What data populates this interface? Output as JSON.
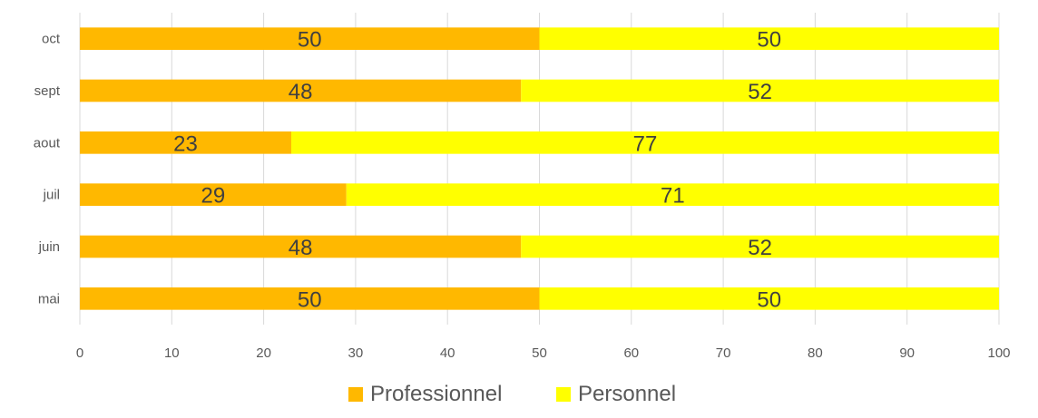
{
  "chart_data": {
    "type": "bar",
    "orientation": "horizontal",
    "stacked": true,
    "categories": [
      "mai",
      "juin",
      "juil",
      "aout",
      "sept",
      "oct"
    ],
    "series": [
      {
        "name": "Professionnel",
        "values": [
          50,
          48,
          29,
          23,
          48,
          50
        ],
        "color": "#FFB800"
      },
      {
        "name": "Personnel",
        "values": [
          50,
          52,
          71,
          77,
          52,
          50
        ],
        "color": "#FFFF00"
      }
    ],
    "xlim": [
      0,
      100
    ],
    "x_ticks": [
      "0",
      "10",
      "20",
      "30",
      "40",
      "50",
      "60",
      "70",
      "80",
      "90",
      "100"
    ],
    "grid": "vertical",
    "legend_position": "bottom",
    "title": "",
    "xlabel": "",
    "ylabel": ""
  }
}
